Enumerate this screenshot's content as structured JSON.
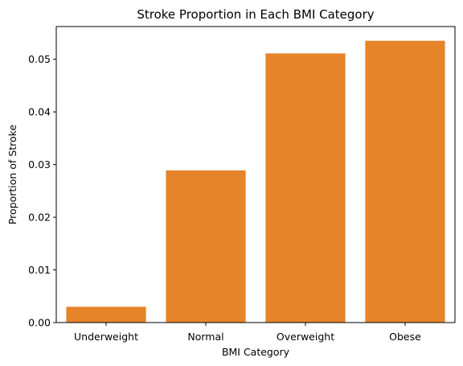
{
  "chart_data": {
    "type": "bar",
    "title": "Stroke Proportion in Each BMI Category",
    "xlabel": "BMI Category",
    "ylabel": "Proportion of Stroke",
    "categories": [
      "Underweight",
      "Normal",
      "Overweight",
      "Obese"
    ],
    "values": [
      0.003,
      0.0289,
      0.0511,
      0.0535
    ],
    "ylim": [
      0,
      0.0562
    ],
    "yticks": [
      0.0,
      0.01,
      0.02,
      0.03,
      0.04,
      0.05
    ],
    "ytick_labels": [
      "0.00",
      "0.01",
      "0.02",
      "0.03",
      "0.04",
      "0.05"
    ],
    "bar_color": "#e6842a",
    "grid": false
  }
}
